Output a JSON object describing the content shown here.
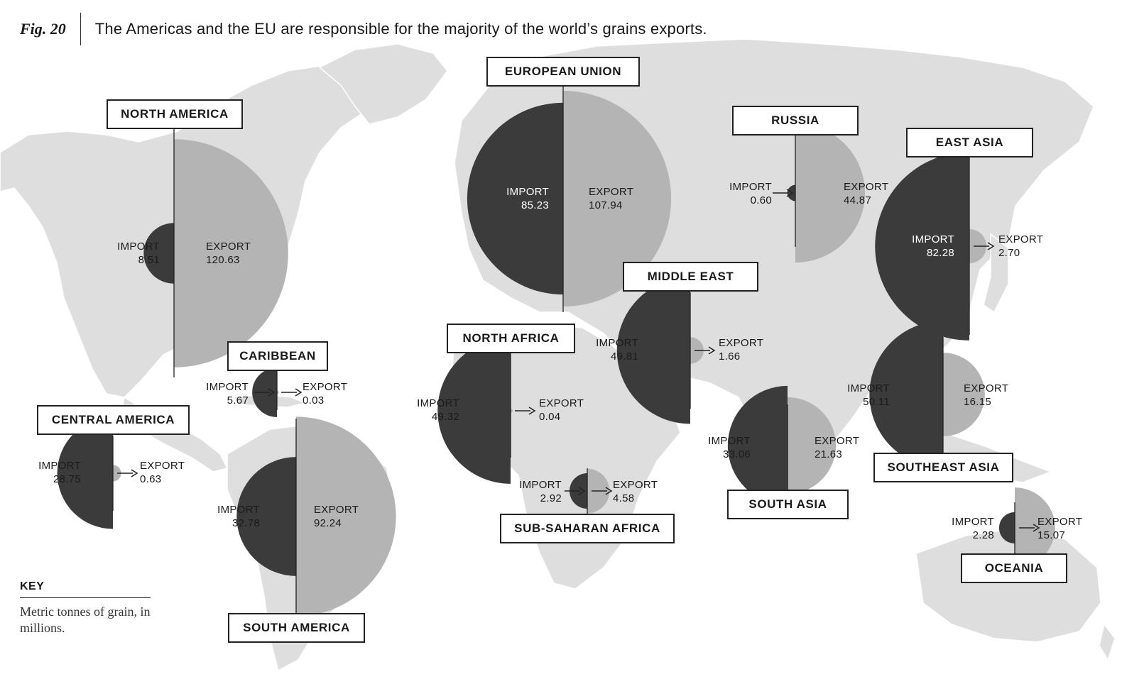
{
  "header": {
    "fig_label": "Fig. 20",
    "title": "The Americas and the EU are responsible for the majority of the world’s grains exports."
  },
  "key": {
    "title": "KEY",
    "text": "Metric tonnes of grain, in millions."
  },
  "labels": {
    "import": "IMPORT",
    "export": "EXPORT"
  },
  "colors": {
    "import": "#3b3b3b",
    "export": "#b4b4b4",
    "land": "#dedede",
    "ocean": "#ffffff",
    "line": "#222222"
  },
  "chart_data": {
    "type": "map",
    "units": "Metric tonnes of grain, in millions.",
    "regions": [
      {
        "id": "north-america",
        "name": "NORTH AMERICA",
        "import": 8.51,
        "export": 120.63,
        "import_text": "8.51",
        "export_text": "120.63"
      },
      {
        "id": "european-union",
        "name": "EUROPEAN UNION",
        "import": 85.23,
        "export": 107.94,
        "import_text": "85.23",
        "export_text": "107.94"
      },
      {
        "id": "russia",
        "name": "RUSSIA",
        "import": 0.6,
        "export": 44.87,
        "import_text": "0.60",
        "export_text": "44.87"
      },
      {
        "id": "east-asia",
        "name": "EAST ASIA",
        "import": 82.28,
        "export": 2.7,
        "import_text": "82.28",
        "export_text": "2.70"
      },
      {
        "id": "middle-east",
        "name": "MIDDLE EAST",
        "import": 49.81,
        "export": 1.66,
        "import_text": "49.81",
        "export_text": "1.66"
      },
      {
        "id": "north-africa",
        "name": "NORTH AFRICA",
        "import": 49.32,
        "export": 0.04,
        "import_text": "49.32",
        "export_text": "0.04"
      },
      {
        "id": "caribbean",
        "name": "CARIBBEAN",
        "import": 5.67,
        "export": 0.03,
        "import_text": "5.67",
        "export_text": "0.03"
      },
      {
        "id": "central-america",
        "name": "CENTRAL AMERICA",
        "import": 28.75,
        "export": 0.63,
        "import_text": "28.75",
        "export_text": "0.63"
      },
      {
        "id": "south-america",
        "name": "SOUTH AMERICA",
        "import": 32.78,
        "export": 92.24,
        "import_text": "32.78",
        "export_text": "92.24"
      },
      {
        "id": "sub-saharan-africa",
        "name": "SUB-SAHARAN AFRICA",
        "import": 2.92,
        "export": 4.58,
        "import_text": "2.92",
        "export_text": "4.58"
      },
      {
        "id": "south-asia",
        "name": "SOUTH ASIA",
        "import": 33.06,
        "export": 21.63,
        "import_text": "33.06",
        "export_text": "21.63"
      },
      {
        "id": "southeast-asia",
        "name": "SOUTHEAST ASIA",
        "import": 50.11,
        "export": 16.15,
        "import_text": "50.11",
        "export_text": "16.15"
      },
      {
        "id": "oceania",
        "name": "OCEANIA",
        "import": 2.28,
        "export": 15.07,
        "import_text": "2.28",
        "export_text": "15.07"
      }
    ]
  }
}
